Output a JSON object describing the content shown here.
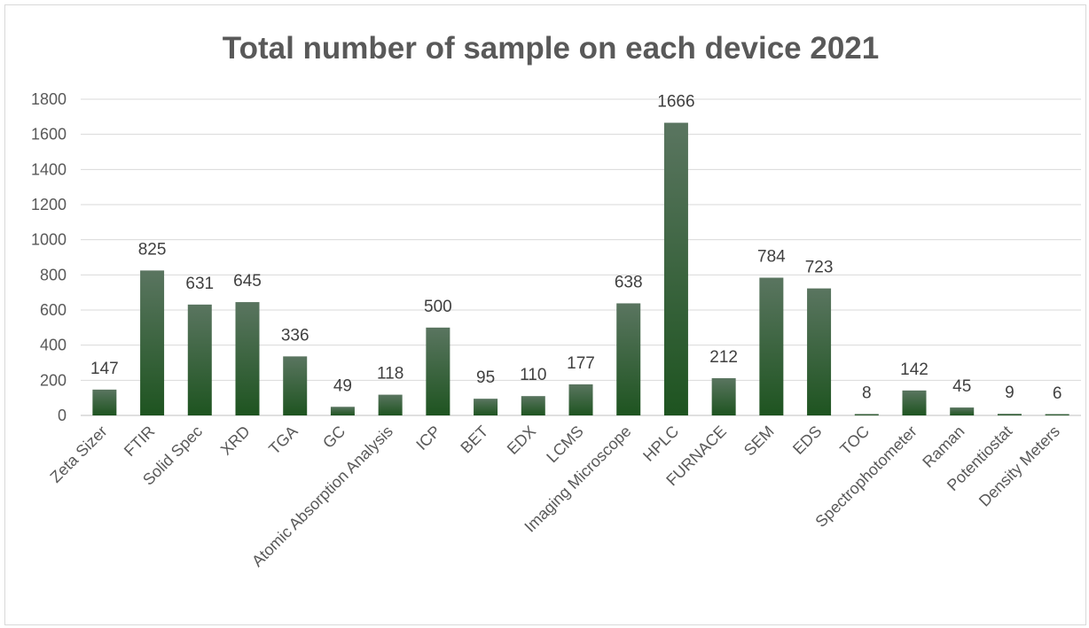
{
  "chart_data": {
    "type": "bar",
    "title": "Total number of sample on each device 2021",
    "xlabel": "",
    "ylabel": "",
    "ylim": [
      0,
      1800
    ],
    "yticks": [
      0,
      200,
      400,
      600,
      800,
      1000,
      1200,
      1400,
      1600,
      1800
    ],
    "grid": true,
    "legend": "none",
    "categories": [
      "Zeta Sizer",
      "FTIR",
      "Solid Spec",
      "XRD",
      "TGA",
      "GC",
      "Atomic Absorption Analysis",
      "ICP",
      "BET",
      "EDX",
      "LCMS",
      "Imaging Microscope",
      "HPLC",
      "FURNACE",
      "SEM",
      "EDS",
      "TOC",
      "Spectrophotometer",
      "Raman",
      "Potentiostat",
      "Density Meters"
    ],
    "values": [
      147,
      825,
      631,
      645,
      336,
      49,
      118,
      500,
      95,
      110,
      177,
      638,
      1666,
      212,
      784,
      723,
      8,
      142,
      45,
      9,
      6
    ],
    "colors": {
      "bar_top": "#5a7560",
      "bar_bottom": "#1e5420"
    }
  }
}
